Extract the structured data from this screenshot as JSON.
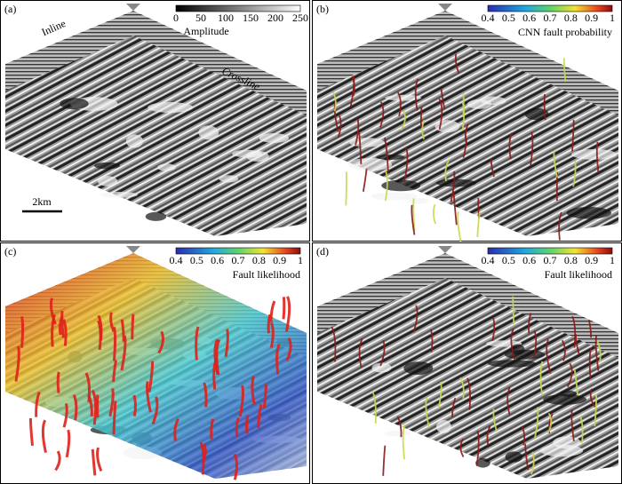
{
  "panels": [
    {
      "label": "(a)",
      "colorbar": {
        "ticks": [
          0,
          50,
          100,
          150,
          200,
          250
        ],
        "title": "Amplitude"
      },
      "annotations": {
        "inline": "Inline",
        "crossline": "Crossline",
        "scale": "2km"
      }
    },
    {
      "label": "(b)",
      "colorbar": {
        "ticks": [
          0.4,
          0.5,
          0.6,
          0.7,
          0.8,
          0.9,
          1
        ],
        "title": "CNN fault probability"
      }
    },
    {
      "label": "(c)",
      "colorbar": {
        "ticks": [
          0.4,
          0.5,
          0.6,
          0.7,
          0.8,
          0.9,
          1
        ],
        "title": "Fault likelihood"
      }
    },
    {
      "label": "(d)",
      "colorbar": {
        "ticks": [
          0.4,
          0.5,
          0.6,
          0.7,
          0.8,
          0.9,
          1
        ],
        "title": "Fault likelihood"
      }
    }
  ]
}
